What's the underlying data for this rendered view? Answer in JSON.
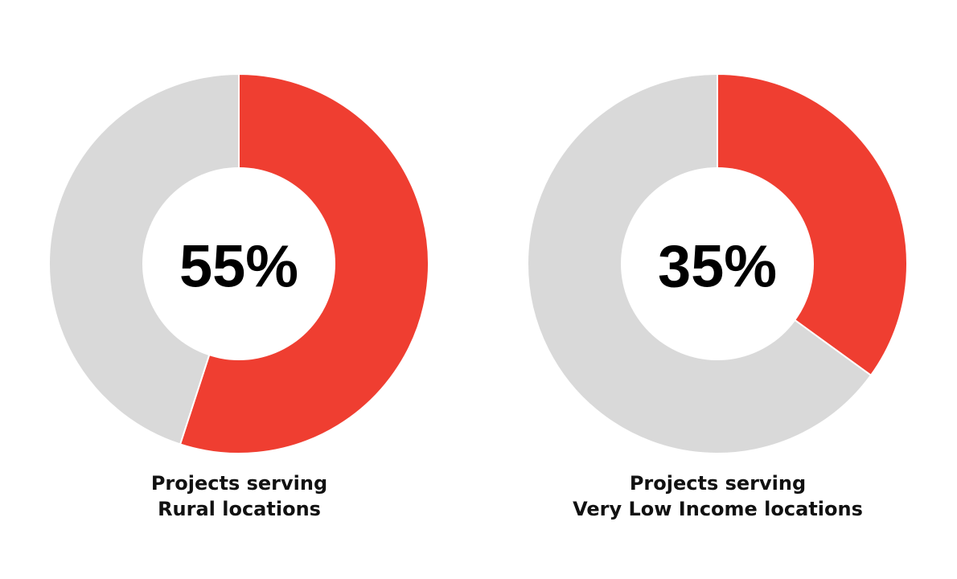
{
  "colors": {
    "highlight": "#EF3E31",
    "remainder": "#D9D9D9",
    "text": "#111111"
  },
  "chart_data": [
    {
      "type": "pie",
      "categories": [
        "Projects serving Rural locations",
        ""
      ],
      "values": [
        55,
        45
      ],
      "center_label": "55%",
      "caption_lines": [
        "Projects serving",
        "Rural locations"
      ]
    },
    {
      "type": "pie",
      "categories": [
        "Projects serving Very Low Income locations",
        ""
      ],
      "values": [
        35,
        65
      ],
      "center_label": "35%",
      "caption_lines": [
        "Projects serving",
        "Very Low Income locations"
      ]
    }
  ]
}
